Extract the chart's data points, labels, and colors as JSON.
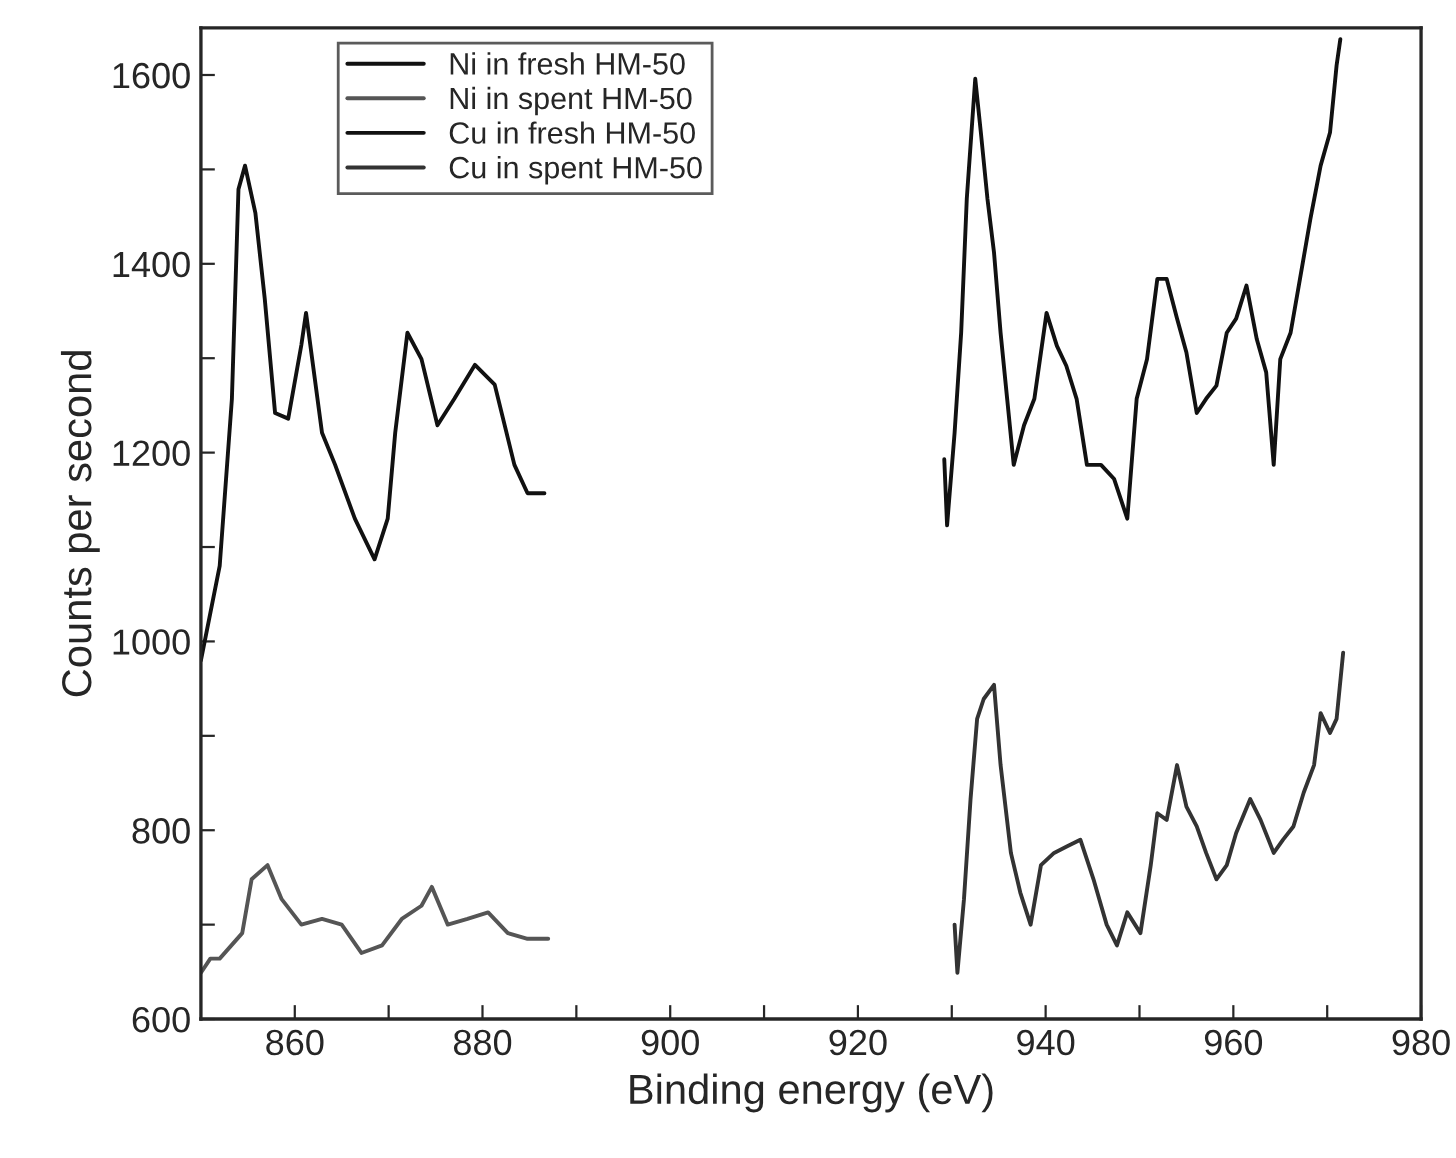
{
  "chart_data": {
    "type": "line",
    "xlabel": "Binding energy (eV)",
    "ylabel": "Counts per second",
    "xlim": [
      850,
      980
    ],
    "ylim": [
      600,
      1650
    ],
    "xticks": [
      860,
      {
        "value": 870,
        "label": null
      },
      880,
      {
        "value": 890,
        "label": null
      },
      900,
      {
        "value": 910,
        "label": null
      },
      920,
      {
        "value": 930,
        "label": null
      },
      940,
      {
        "value": 950,
        "label": null
      },
      960,
      {
        "value": 970,
        "label": null
      },
      980
    ],
    "yticks": [
      600,
      {
        "value": 700,
        "label": null
      },
      800,
      {
        "value": 900,
        "label": null
      },
      1000,
      {
        "value": 1100,
        "label": null
      },
      1200,
      {
        "value": 1300,
        "label": null
      },
      1400,
      {
        "value": 1500,
        "label": null
      },
      1600
    ],
    "grid": false,
    "legend": "top left",
    "marker": "none",
    "line_style": "solid",
    "series": [
      {
        "name": "Ni in fresh HM-50",
        "color": "#111111",
        "x": [
          850,
          851,
          852,
          853.3,
          854,
          854.7,
          855.8,
          856.8,
          857.9,
          859.3,
          860.7,
          861.2,
          862.9,
          864.3,
          866.4,
          868.5,
          869.9,
          870.7,
          872,
          873.5,
          875.2,
          877,
          879.2,
          881.3,
          883.4,
          884.8,
          886.6
        ],
        "values": [
          980,
          1030,
          1080,
          1257,
          1479,
          1504,
          1454,
          1363,
          1242,
          1236,
          1314,
          1348,
          1221,
          1187,
          1130,
          1087,
          1130,
          1221,
          1327,
          1299,
          1229,
          1257,
          1293,
          1272,
          1187,
          1157,
          1157
        ]
      },
      {
        "name": "Ni in spent HM-50",
        "color": "#555555",
        "x": [
          850,
          851,
          852,
          854.4,
          855.4,
          857.1,
          858.6,
          860.7,
          862.9,
          865,
          867.1,
          869.3,
          871.4,
          873.5,
          874.6,
          876.3,
          878.4,
          880.6,
          882.7,
          884.8,
          887
        ],
        "values": [
          649,
          664,
          664,
          691,
          748,
          763,
          727,
          700,
          706,
          700,
          670,
          678,
          706,
          720,
          740,
          700,
          706,
          713,
          691,
          685,
          685
        ]
      },
      {
        "name": "Cu in fresh HM-50",
        "color": "#111111",
        "x": [
          929.2,
          929.5,
          930.3,
          931,
          931.6,
          932.5,
          933.1,
          933.8,
          934.5,
          935.2,
          935.9,
          936.6,
          937.7,
          938.8,
          940.1,
          941.2,
          942.2,
          943.3,
          944.4,
          945.9,
          947.3,
          948.7,
          949.7,
          950.8,
          951.9,
          952.9,
          954,
          955,
          956.1,
          957.1,
          958.2,
          959.3,
          960.3,
          961.4,
          962.5,
          963.5,
          964.3,
          965,
          966.1,
          967.1,
          968.2,
          969.3,
          970.3,
          971,
          971.4
        ],
        "values": [
          1193,
          1123,
          1221,
          1327,
          1469,
          1596,
          1539,
          1469,
          1412,
          1327,
          1257,
          1187,
          1229,
          1257,
          1348,
          1313,
          1292,
          1257,
          1187,
          1187,
          1172,
          1130,
          1257,
          1299,
          1384,
          1384,
          1342,
          1306,
          1242,
          1257,
          1271,
          1327,
          1342,
          1377,
          1320,
          1285,
          1187,
          1299,
          1327,
          1384,
          1447,
          1504,
          1539,
          1610,
          1638
        ]
      },
      {
        "name": "Cu in spent HM-50",
        "color": "#333333",
        "x": [
          930.3,
          930.6,
          931.3,
          932,
          932.7,
          933.4,
          934.5,
          935.2,
          936.3,
          937.3,
          938.4,
          939.5,
          940.9,
          942.3,
          943.7,
          945.1,
          946.5,
          947.6,
          948.7,
          950.1,
          951.2,
          951.9,
          952.9,
          954,
          955,
          956.1,
          957.1,
          958.2,
          959.3,
          960.3,
          961.8,
          962.9,
          964.3,
          965.3,
          966.4,
          967.5,
          968.6,
          969.3,
          970.3,
          971,
          971.7
        ],
        "values": [
          700,
          649,
          727,
          833,
          918,
          939,
          954,
          869,
          776,
          734,
          700,
          763,
          776,
          783,
          790,
          748,
          700,
          678,
          713,
          691,
          763,
          818,
          811,
          869,
          825,
          804,
          776,
          748,
          763,
          797,
          833,
          811,
          776,
          790,
          804,
          840,
          869,
          924,
          903,
          918,
          988
        ]
      }
    ]
  }
}
